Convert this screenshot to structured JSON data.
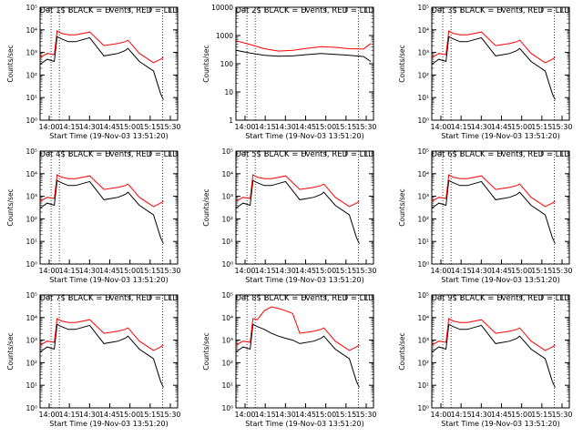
{
  "chart_data": [
    {
      "type": "line",
      "title": "Det 1$ BLACK = Events, RED = LLD",
      "xlabel": "Start Time (19-Nov-03 13:51:20)",
      "ylabel": "Counts/sec",
      "yscale": "log",
      "ylim": [
        1,
        100000
      ],
      "ytick_labels": [
        "10⁰",
        "10¹",
        "10²",
        "10³",
        "10⁴",
        "10⁵"
      ],
      "xticks": [
        "14:00",
        "14:15",
        "14:30",
        "14:45",
        "15:00",
        "15:15",
        "15:30"
      ],
      "series": [
        {
          "color": "#000000",
          "x": [
            0,
            5,
            10,
            12,
            15,
            20,
            25,
            35,
            45,
            55,
            60,
            62,
            70,
            80,
            85,
            87
          ],
          "y": [
            300,
            500,
            400,
            5000,
            4000,
            3000,
            3000,
            4500,
            700,
            900,
            1200,
            1500,
            400,
            150,
            15,
            8
          ]
        },
        {
          "color": "#ff0000",
          "x": [
            0,
            5,
            10,
            12,
            15,
            20,
            25,
            35,
            45,
            55,
            60,
            62,
            70,
            80,
            85,
            87
          ],
          "y": [
            600,
            900,
            800,
            9000,
            7000,
            6000,
            6000,
            8000,
            2000,
            2500,
            3000,
            3500,
            900,
            350,
            500,
            600
          ]
        }
      ]
    },
    {
      "type": "line",
      "title": "Det 2$ BLACK = Events, RED = LLD",
      "xlabel": "Start Time (19-Nov-03 13:51:20)",
      "ylabel": "Counts/sec",
      "yscale": "log",
      "ylim": [
        1,
        10000
      ],
      "ytick_labels": [
        "1",
        "10",
        "100",
        "1000",
        "10000"
      ],
      "xticks": [
        "14:00",
        "14:15",
        "14:30",
        "14:45",
        "15:00",
        "15:15",
        "15:30"
      ],
      "series": [
        {
          "color": "#000000",
          "x": [
            0,
            10,
            20,
            30,
            40,
            50,
            60,
            70,
            80,
            90,
            95
          ],
          "y": [
            300,
            240,
            200,
            185,
            190,
            210,
            230,
            215,
            200,
            180,
            120
          ]
        },
        {
          "color": "#ff0000",
          "x": [
            0,
            10,
            20,
            30,
            40,
            50,
            60,
            70,
            80,
            90,
            95
          ],
          "y": [
            650,
            480,
            340,
            280,
            300,
            350,
            400,
            380,
            340,
            330,
            520
          ]
        }
      ]
    },
    {
      "type": "line",
      "title": "Det 3$ BLACK = Events, RED = LLD",
      "xlabel": "Start Time (19-Nov-03 13:51:20)",
      "ylabel": "Counts/sec",
      "yscale": "log",
      "ylim": [
        1,
        100000
      ],
      "ytick_labels": [
        "10⁰",
        "10¹",
        "10²",
        "10³",
        "10⁴",
        "10⁵"
      ],
      "xticks": [
        "14:00",
        "14:15",
        "14:30",
        "14:45",
        "15:00",
        "15:15",
        "15:30"
      ],
      "series": [
        {
          "color": "#000000",
          "x": [
            0,
            5,
            10,
            12,
            15,
            20,
            25,
            35,
            45,
            55,
            60,
            62,
            70,
            80,
            85,
            87
          ],
          "y": [
            300,
            500,
            400,
            5000,
            4000,
            3000,
            3000,
            4500,
            700,
            900,
            1200,
            1500,
            400,
            150,
            15,
            8
          ]
        },
        {
          "color": "#ff0000",
          "x": [
            0,
            5,
            10,
            12,
            15,
            20,
            25,
            35,
            45,
            55,
            60,
            62,
            70,
            80,
            85,
            87
          ],
          "y": [
            600,
            900,
            800,
            9000,
            7000,
            6000,
            6000,
            8000,
            2000,
            2500,
            3000,
            3500,
            900,
            350,
            500,
            600
          ]
        }
      ]
    },
    {
      "type": "line",
      "title": "Det 4$ BLACK = Events, RED = LLD",
      "xlabel": "Start Time (19-Nov-03 13:51:20)",
      "ylabel": "Counts/sec",
      "yscale": "log",
      "ylim": [
        1,
        100000
      ],
      "ytick_labels": [
        "10⁰",
        "10¹",
        "10²",
        "10³",
        "10⁴",
        "10⁵"
      ],
      "xticks": [
        "14:00",
        "14:15",
        "14:30",
        "14:45",
        "15:00",
        "15:15",
        "15:30"
      ],
      "series": [
        {
          "color": "#000000",
          "x": [
            0,
            5,
            10,
            12,
            15,
            20,
            25,
            35,
            45,
            55,
            60,
            62,
            70,
            80,
            85,
            87
          ],
          "y": [
            300,
            500,
            400,
            5000,
            4000,
            3000,
            3000,
            4500,
            700,
            900,
            1200,
            1500,
            400,
            150,
            15,
            8
          ]
        },
        {
          "color": "#ff0000",
          "x": [
            0,
            5,
            10,
            12,
            15,
            20,
            25,
            35,
            45,
            55,
            60,
            62,
            70,
            80,
            85,
            87
          ],
          "y": [
            600,
            900,
            800,
            9000,
            7000,
            6000,
            6000,
            8000,
            2000,
            2500,
            3000,
            3500,
            900,
            350,
            500,
            600
          ]
        }
      ]
    },
    {
      "type": "line",
      "title": "Det 5$ BLACK = Events, RED = LLD",
      "xlabel": "Start Time (19-Nov-03 13:51:20)",
      "ylabel": "Counts/sec",
      "yscale": "log",
      "ylim": [
        1,
        100000
      ],
      "ytick_labels": [
        "10⁰",
        "10¹",
        "10²",
        "10³",
        "10⁴",
        "10⁵"
      ],
      "xticks": [
        "14:00",
        "14:15",
        "14:30",
        "14:45",
        "15:00",
        "15:15",
        "15:30"
      ],
      "series": [
        {
          "color": "#000000",
          "x": [
            0,
            5,
            10,
            12,
            15,
            20,
            25,
            35,
            45,
            55,
            60,
            62,
            70,
            80,
            85,
            87
          ],
          "y": [
            300,
            500,
            400,
            5000,
            4000,
            3000,
            3000,
            4500,
            700,
            900,
            1200,
            1500,
            400,
            150,
            15,
            8
          ]
        },
        {
          "color": "#ff0000",
          "x": [
            0,
            5,
            10,
            12,
            15,
            20,
            25,
            35,
            45,
            55,
            60,
            62,
            70,
            80,
            85,
            87
          ],
          "y": [
            600,
            900,
            800,
            9000,
            7000,
            6000,
            6000,
            8000,
            2000,
            2500,
            3000,
            3500,
            900,
            350,
            500,
            600
          ]
        }
      ]
    },
    {
      "type": "line",
      "title": "Det 6$ BLACK = Events, RED = LLD",
      "xlabel": "Start Time (19-Nov-03 13:51:20)",
      "ylabel": "Counts/sec",
      "yscale": "log",
      "ylim": [
        1,
        100000
      ],
      "ytick_labels": [
        "10⁰",
        "10¹",
        "10²",
        "10³",
        "10⁴",
        "10⁵"
      ],
      "xticks": [
        "14:00",
        "14:15",
        "14:30",
        "14:45",
        "15:00",
        "15:15",
        "15:30"
      ],
      "series": [
        {
          "color": "#000000",
          "x": [
            0,
            5,
            10,
            12,
            15,
            20,
            25,
            35,
            45,
            55,
            60,
            62,
            70,
            80,
            85,
            87
          ],
          "y": [
            300,
            500,
            400,
            5000,
            4000,
            3000,
            3000,
            4500,
            700,
            900,
            1200,
            1500,
            400,
            150,
            15,
            8
          ]
        },
        {
          "color": "#ff0000",
          "x": [
            0,
            5,
            10,
            12,
            15,
            20,
            25,
            35,
            45,
            55,
            60,
            62,
            70,
            80,
            85,
            87
          ],
          "y": [
            600,
            900,
            800,
            9000,
            7000,
            6000,
            6000,
            8000,
            2000,
            2500,
            3000,
            3500,
            900,
            350,
            500,
            600
          ]
        }
      ]
    },
    {
      "type": "line",
      "title": "Det 7$ BLACK = Events, RED = LLD",
      "xlabel": "Start Time (19-Nov-03 13:51:20)",
      "ylabel": "Counts/sec",
      "yscale": "log",
      "ylim": [
        1,
        100000
      ],
      "ytick_labels": [
        "10⁰",
        "10¹",
        "10²",
        "10³",
        "10⁴",
        "10⁵"
      ],
      "xticks": [
        "14:00",
        "14:15",
        "14:30",
        "14:45",
        "15:00",
        "15:15",
        "15:30"
      ],
      "series": [
        {
          "color": "#000000",
          "x": [
            0,
            5,
            10,
            12,
            15,
            20,
            25,
            35,
            45,
            55,
            60,
            62,
            70,
            80,
            85,
            87
          ],
          "y": [
            300,
            500,
            400,
            5000,
            4000,
            3000,
            3000,
            4500,
            700,
            900,
            1200,
            1500,
            400,
            150,
            15,
            8
          ]
        },
        {
          "color": "#ff0000",
          "x": [
            0,
            5,
            10,
            12,
            15,
            20,
            25,
            35,
            45,
            55,
            60,
            62,
            70,
            80,
            85,
            87
          ],
          "y": [
            600,
            900,
            800,
            9000,
            7000,
            6000,
            6000,
            8000,
            2000,
            2500,
            3000,
            3500,
            900,
            350,
            500,
            600
          ]
        }
      ]
    },
    {
      "type": "line",
      "title": "Det 8$ BLACK = Events, RED = LLD",
      "xlabel": "Start Time (19-Nov-03 13:51:20)",
      "ylabel": "Counts/sec",
      "yscale": "log",
      "ylim": [
        1,
        100000
      ],
      "ytick_labels": [
        "10⁰",
        "10¹",
        "10²",
        "10³",
        "10⁴",
        "10⁵"
      ],
      "xticks": [
        "14:00",
        "14:15",
        "14:30",
        "14:45",
        "15:00",
        "15:15",
        "15:30"
      ],
      "series": [
        {
          "color": "#000000",
          "x": [
            0,
            5,
            10,
            12,
            15,
            20,
            25,
            30,
            35,
            40,
            45,
            55,
            60,
            62,
            70,
            80,
            85,
            87
          ],
          "y": [
            300,
            500,
            400,
            5000,
            4000,
            3000,
            2000,
            1500,
            1200,
            1000,
            700,
            900,
            1200,
            1500,
            400,
            150,
            15,
            8
          ]
        },
        {
          "color": "#ff0000",
          "x": [
            0,
            5,
            10,
            12,
            15,
            20,
            25,
            30,
            35,
            40,
            45,
            55,
            60,
            62,
            70,
            80,
            85,
            87
          ],
          "y": [
            600,
            900,
            800,
            9000,
            8000,
            20000,
            30000,
            25000,
            20000,
            15000,
            2000,
            2500,
            3000,
            3500,
            900,
            350,
            500,
            600
          ]
        }
      ]
    },
    {
      "type": "line",
      "title": "Det 9$ BLACK = Events, RED = LLD",
      "xlabel": "Start Time (19-Nov-03 13:51:20)",
      "ylabel": "Counts/sec",
      "yscale": "log",
      "ylim": [
        1,
        100000
      ],
      "ytick_labels": [
        "10⁰",
        "10¹",
        "10²",
        "10³",
        "10⁴",
        "10⁵"
      ],
      "xticks": [
        "14:00",
        "14:15",
        "14:30",
        "14:45",
        "15:00",
        "15:15",
        "15:30"
      ],
      "series": [
        {
          "color": "#000000",
          "x": [
            0,
            5,
            10,
            12,
            15,
            20,
            25,
            35,
            45,
            55,
            60,
            62,
            70,
            80,
            85,
            87
          ],
          "y": [
            300,
            500,
            400,
            5000,
            4000,
            3000,
            3000,
            4500,
            700,
            900,
            1200,
            1500,
            400,
            150,
            15,
            8
          ]
        },
        {
          "color": "#ff0000",
          "x": [
            0,
            5,
            10,
            12,
            15,
            20,
            25,
            35,
            45,
            55,
            60,
            62,
            70,
            80,
            85,
            87
          ],
          "y": [
            600,
            900,
            800,
            9000,
            7000,
            6000,
            6000,
            8000,
            2000,
            2500,
            3000,
            3500,
            900,
            350,
            500,
            600
          ]
        }
      ]
    }
  ]
}
